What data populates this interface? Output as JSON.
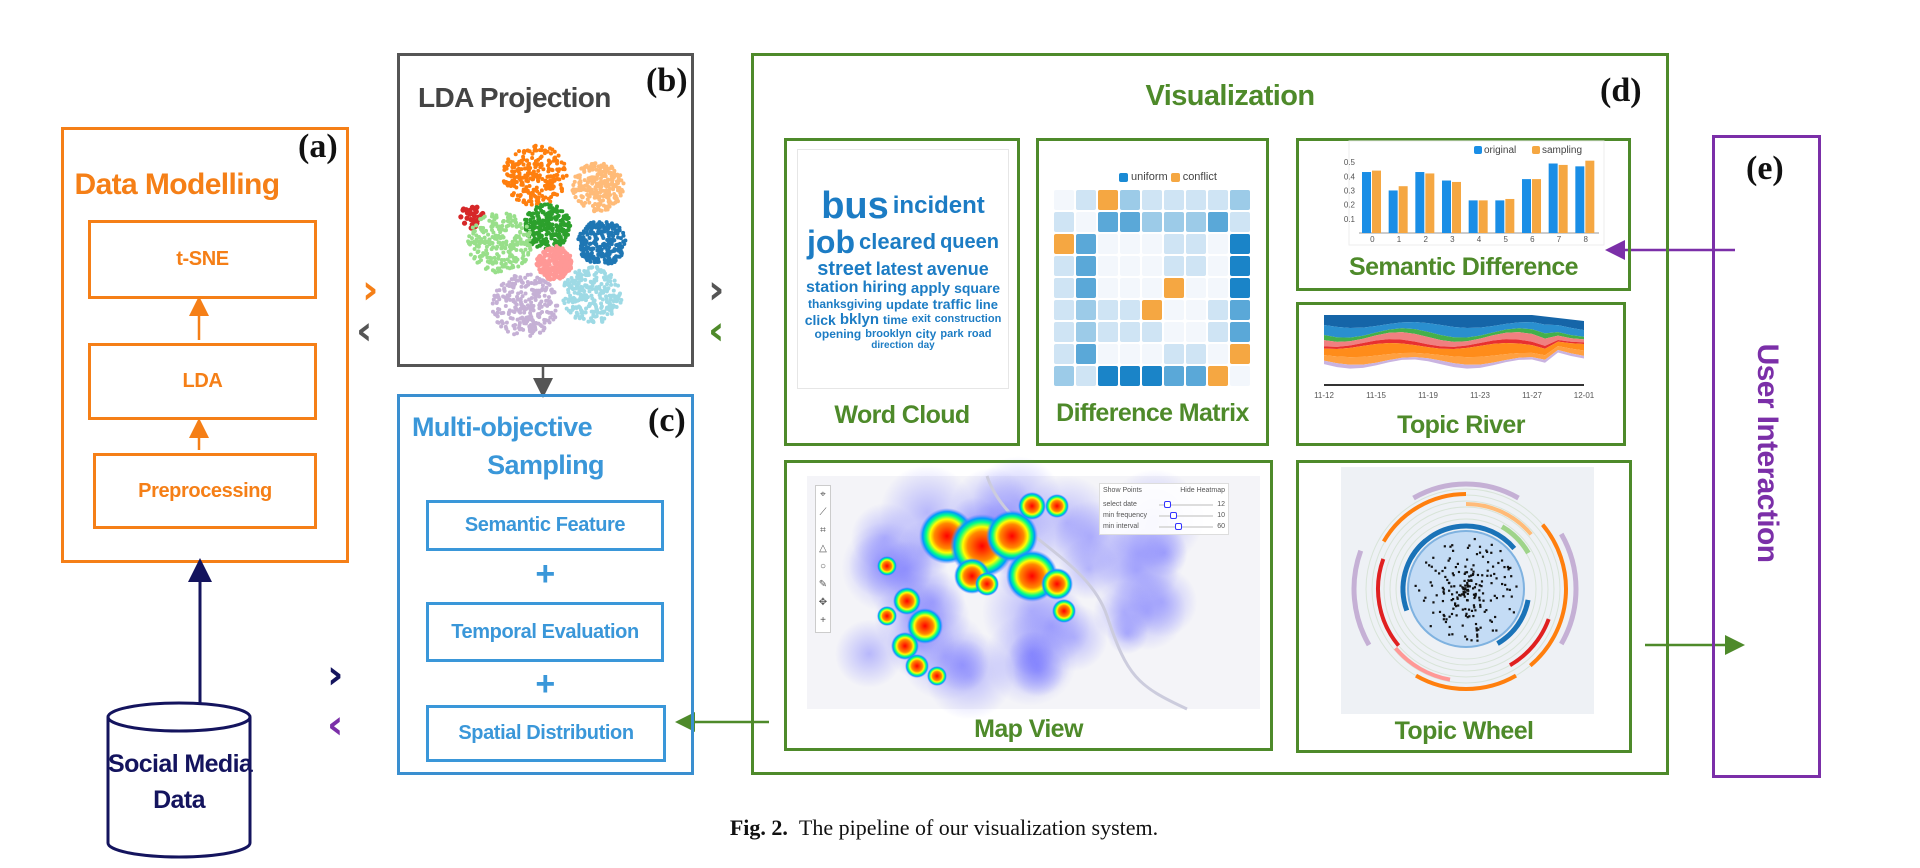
{
  "panels": {
    "a": {
      "label": "(a)",
      "title": "Data Modelling",
      "steps": [
        "t-SNE",
        "LDA",
        "Preprocessing"
      ]
    },
    "b": {
      "label": "(b)",
      "title": "LDA Projection"
    },
    "c": {
      "label": "(c)",
      "title_line1": "Multi-objective",
      "title_line2": "Sampling",
      "steps": [
        "Semantic Feature",
        "Temporal Evaluation",
        "Spatial Distribution"
      ],
      "plus": "+"
    },
    "d": {
      "label": "(d)",
      "title": "Visualization",
      "views": {
        "word_cloud": "Word Cloud",
        "difference_matrix": "Difference Matrix",
        "semantic_difference": "Semantic Difference",
        "topic_river": "Topic River",
        "map_view": "Map View",
        "topic_wheel": "Topic Wheel"
      }
    },
    "e": {
      "label": "(e)",
      "title": "User Interaction"
    }
  },
  "data_source": {
    "line1": "Social Media",
    "line2": "Data"
  },
  "word_cloud": {
    "words": [
      "bus",
      "incident",
      "job",
      "cleared",
      "queen",
      "street",
      "latest",
      "avenue",
      "station",
      "hiring",
      "apply",
      "square",
      "thanksgiving",
      "update",
      "traffic",
      "line",
      "click",
      "bklyn",
      "time",
      "exit",
      "construction",
      "opening",
      "brooklyn",
      "city",
      "park",
      "road",
      "direction",
      "day"
    ]
  },
  "difference_matrix": {
    "legend": [
      "uniform",
      "conflict"
    ],
    "colors": {
      "uniform": "#1a8ad4",
      "conflict": "#f5a742"
    },
    "levels": [
      [
        0,
        1,
        "c",
        2,
        1,
        1,
        1,
        1,
        2
      ],
      [
        1,
        0,
        3,
        3,
        2,
        2,
        2,
        3,
        1
      ],
      [
        "c",
        3,
        0,
        0,
        0,
        1,
        1,
        0,
        4
      ],
      [
        1,
        3,
        0,
        0,
        0,
        1,
        1,
        0,
        4
      ],
      [
        1,
        3,
        0,
        0,
        0,
        "c",
        0,
        0,
        4
      ],
      [
        1,
        2,
        1,
        1,
        "c",
        0,
        0,
        1,
        3
      ],
      [
        1,
        2,
        1,
        1,
        1,
        0,
        0,
        1,
        3
      ],
      [
        1,
        3,
        0,
        0,
        0,
        1,
        1,
        0,
        "c"
      ],
      [
        2,
        1,
        4,
        4,
        4,
        3,
        3,
        "c",
        0
      ]
    ]
  },
  "topic_river": {
    "ticks": [
      "11-12",
      "11-15",
      "11-19",
      "11-23",
      "11-27",
      "12-01"
    ]
  },
  "map_view": {
    "buttons": [
      "Show Points",
      "Hide Heatmap"
    ],
    "sliders": [
      {
        "label": "select date",
        "value": "12",
        "fraction": 0.1
      },
      {
        "label": "min frequency",
        "value": "10",
        "fraction": 0.2
      },
      {
        "label": "min interval",
        "value": "60",
        "fraction": 0.3
      }
    ]
  },
  "caption": {
    "prefix": "Fig. 2.",
    "text": "The pipeline of our visualization system."
  },
  "colors": {
    "orange": "#f57f17",
    "grey": "#555555",
    "blue": "#3a8fd0",
    "green": "#4e8a2a",
    "purple": "#7b2fa8",
    "navy": "#14145e"
  },
  "chart_data": {
    "type": "bar",
    "title": "Semantic Difference",
    "categories": [
      "0",
      "1",
      "2",
      "3",
      "4",
      "5",
      "6",
      "7",
      "8"
    ],
    "series": [
      {
        "name": "original",
        "color": "#1a8ee6",
        "values": [
          0.43,
          0.3,
          0.43,
          0.37,
          0.23,
          0.23,
          0.38,
          0.49,
          0.47
        ]
      },
      {
        "name": "sampling",
        "color": "#f5a742",
        "values": [
          0.44,
          0.33,
          0.42,
          0.36,
          0.23,
          0.24,
          0.38,
          0.48,
          0.51
        ]
      }
    ],
    "yticks": [
      "0.1",
      "0.2",
      "0.3",
      "0.4",
      "0.5"
    ],
    "ylim": [
      0,
      0.55
    ],
    "legend": "top-right"
  }
}
